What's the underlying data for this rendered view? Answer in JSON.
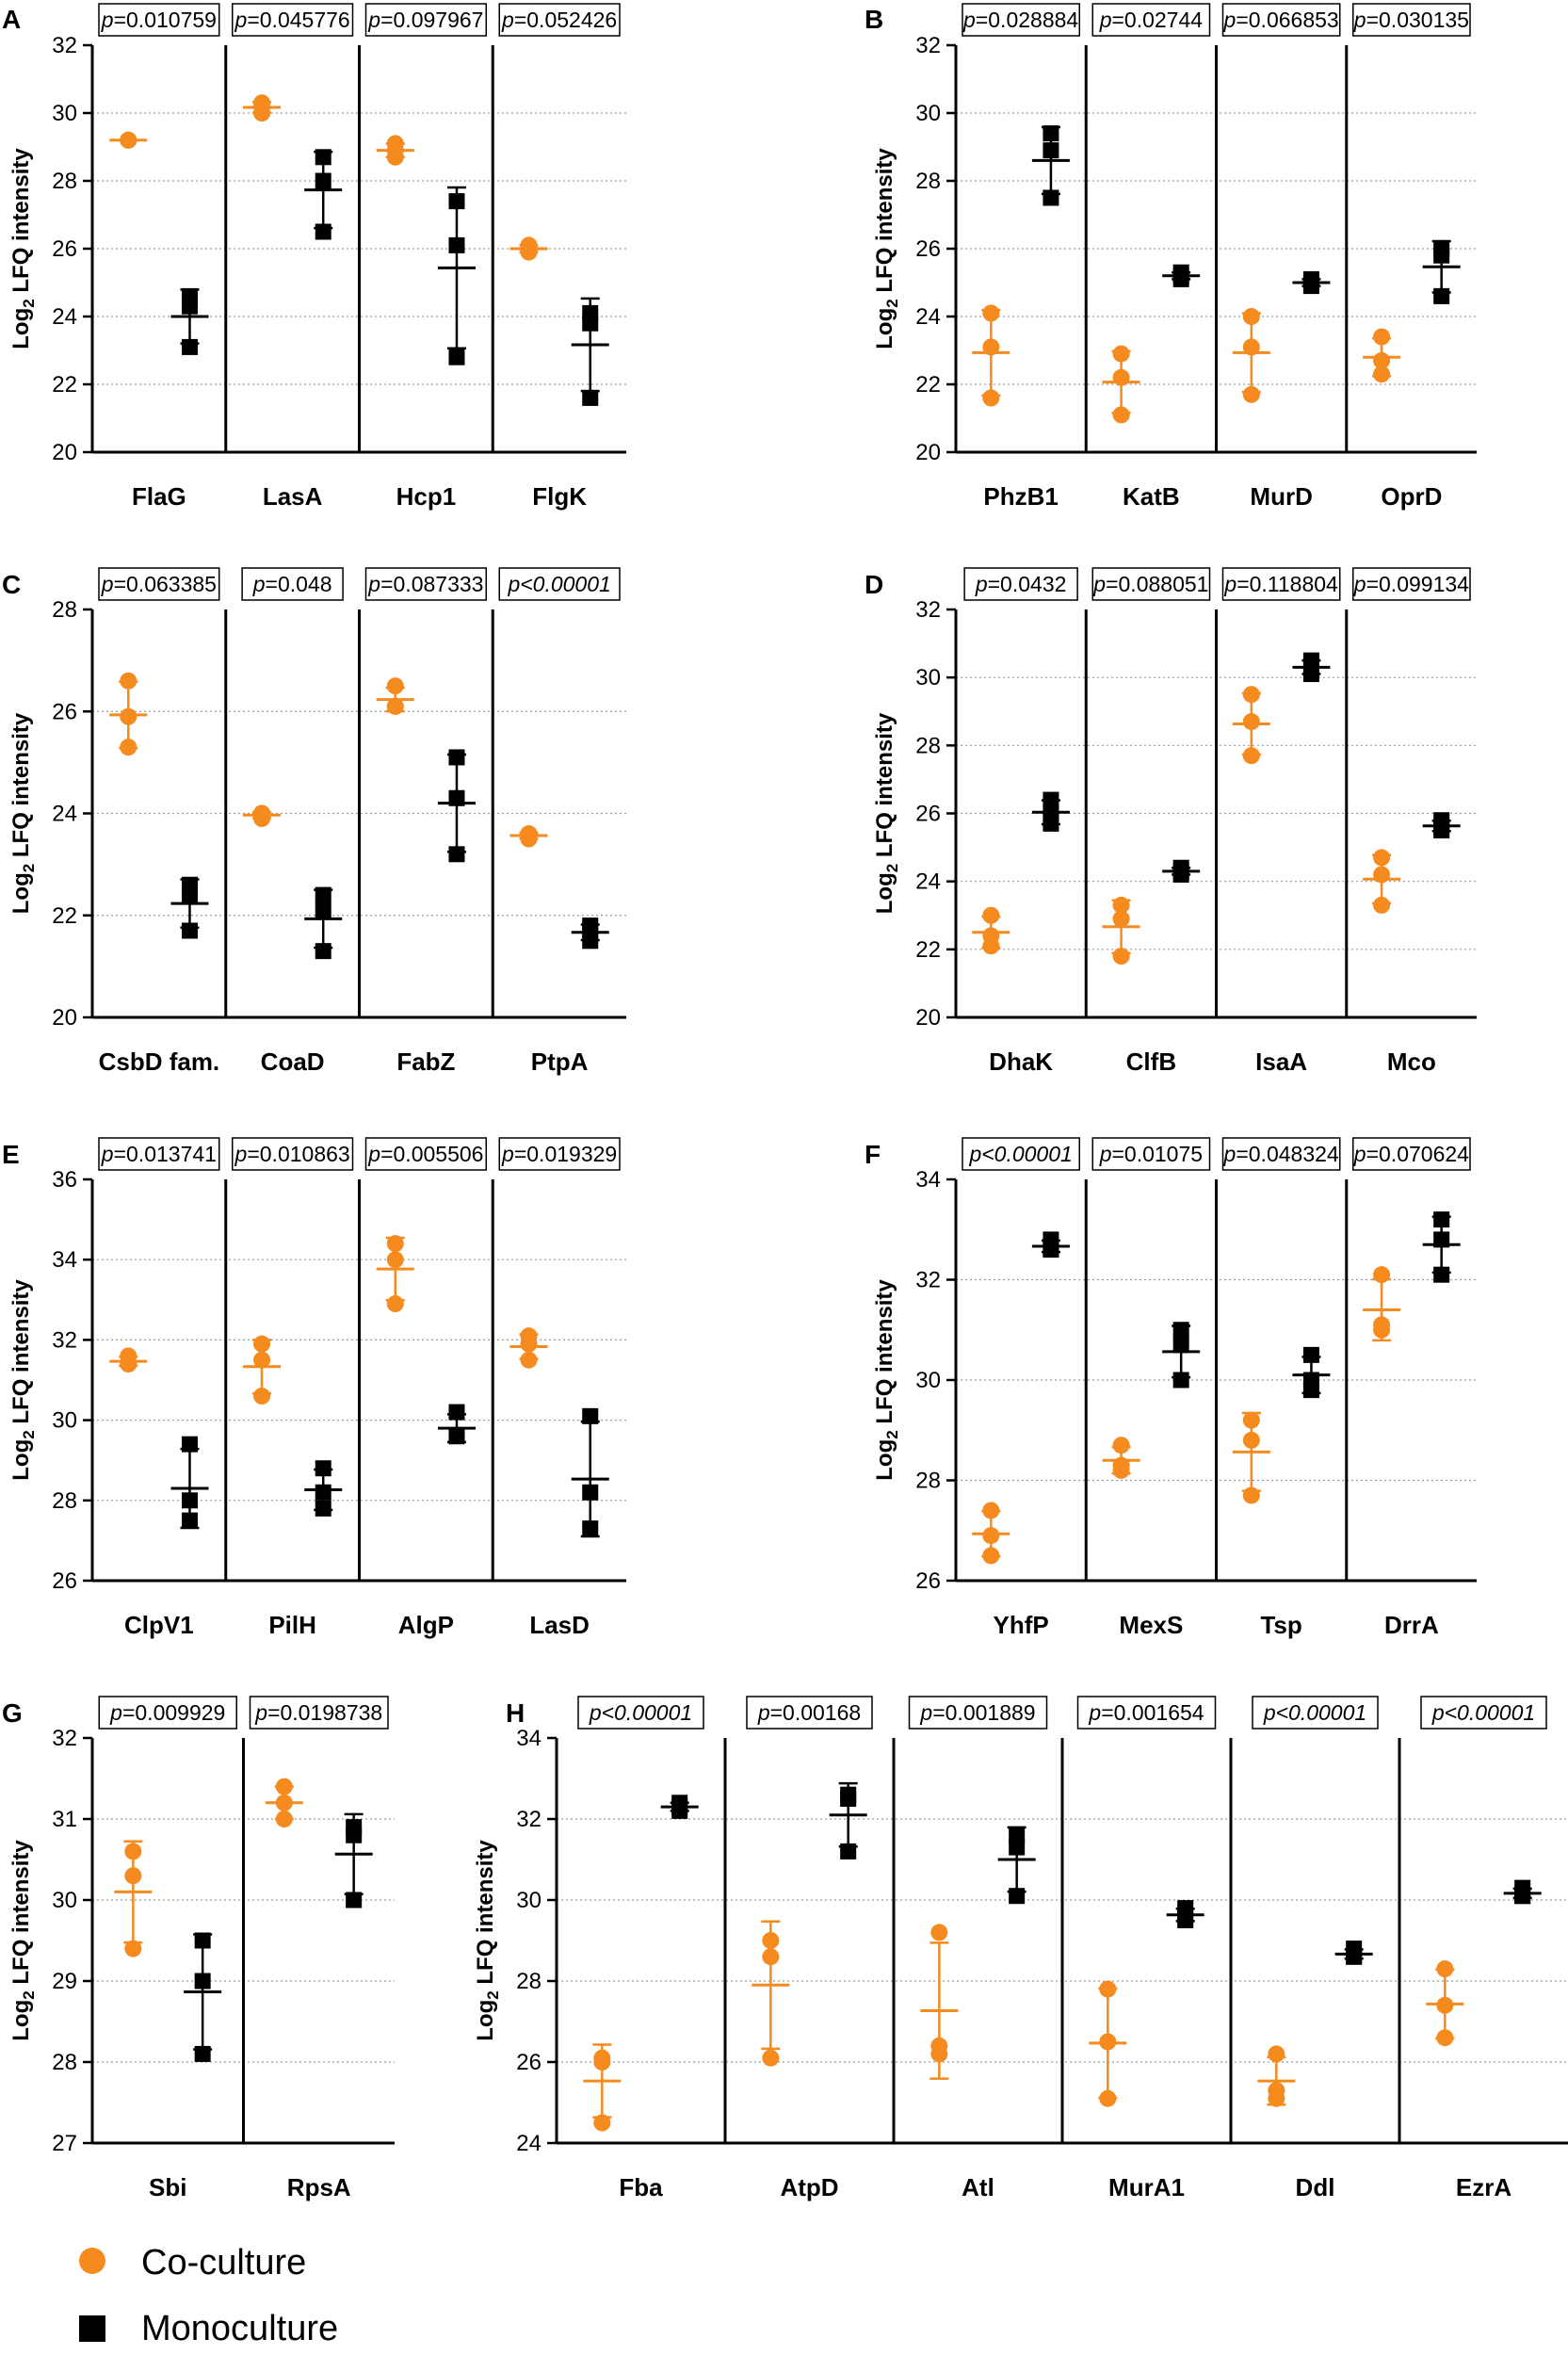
{
  "colors": {
    "coculture": "#F58A1F",
    "monoculture": "#000000"
  },
  "legend": [
    {
      "label": "Co-culture",
      "color": "#F58A1F",
      "marker": "circle"
    },
    {
      "label": "Monoculture",
      "color": "#000000",
      "marker": "square"
    }
  ],
  "chart_data": [
    {
      "panel": "A",
      "type": "scatter",
      "ylabel": "Log2 LFQ intensity",
      "ylim": [
        20,
        32
      ],
      "yticks": [
        20,
        22,
        24,
        26,
        28,
        30,
        32
      ],
      "categories": [
        "FlaG",
        "LasA",
        "Hcp1",
        "FlgK"
      ],
      "pvalues": [
        "p=0.010759",
        "p=0.045776",
        "p=0.097967",
        "p=0.052426"
      ],
      "series": [
        {
          "name": "Co-culture",
          "points": [
            [
              29.2,
              29.2,
              29.2
            ],
            [
              30.3,
              30.0,
              30.2
            ],
            [
              29.1,
              28.7,
              28.9
            ],
            [
              26.1,
              25.9,
              26.0
            ]
          ]
        },
        {
          "name": "Monoculture",
          "points": [
            [
              24.6,
              24.3,
              23.1
            ],
            [
              28.7,
              28.0,
              26.5
            ],
            [
              27.4,
              26.1,
              22.8
            ],
            [
              24.1,
              21.6,
              23.8
            ]
          ]
        }
      ]
    },
    {
      "panel": "B",
      "type": "scatter",
      "ylabel": "Log2 LFQ intensity",
      "ylim": [
        20,
        32
      ],
      "yticks": [
        20,
        22,
        24,
        26,
        28,
        30,
        32
      ],
      "categories": [
        "PhzB1",
        "KatB",
        "MurD",
        "OprD"
      ],
      "pvalues": [
        "p=0.028884",
        "p=0.02744",
        "p=0.066853",
        "p=0.030135"
      ],
      "series": [
        {
          "name": "Co-culture",
          "points": [
            [
              24.1,
              23.1,
              21.6
            ],
            [
              22.9,
              22.2,
              21.1
            ],
            [
              24.0,
              23.1,
              21.7
            ],
            [
              23.4,
              22.7,
              22.3
            ]
          ]
        },
        {
          "name": "Monoculture",
          "points": [
            [
              29.4,
              28.9,
              27.5
            ],
            [
              25.2,
              25.3,
              25.1
            ],
            [
              25.0,
              24.9,
              25.1
            ],
            [
              26.0,
              25.8,
              24.6
            ]
          ]
        }
      ]
    },
    {
      "panel": "C",
      "type": "scatter",
      "ylabel": "Log2 LFQ intensity",
      "ylim": [
        20,
        28
      ],
      "yticks": [
        20,
        22,
        24,
        26,
        28
      ],
      "categories": [
        "CsbD fam.",
        "CoaD",
        "FabZ",
        "PtpA"
      ],
      "pvalues": [
        "p=0.063385",
        "p=0.048",
        "p=0.087333",
        "p<0.00001"
      ],
      "italic": [
        false,
        false,
        false,
        true
      ],
      "series": [
        {
          "name": "Co-culture",
          "points": [
            [
              26.6,
              25.9,
              25.3
            ],
            [
              24.0,
              23.9,
              24.0
            ],
            [
              26.5,
              26.1,
              26.1
            ],
            [
              23.6,
              23.5,
              23.6
            ]
          ]
        },
        {
          "name": "Monoculture",
          "points": [
            [
              22.6,
              22.4,
              21.7
            ],
            [
              22.4,
              22.1,
              21.3
            ],
            [
              25.1,
              24.3,
              23.2
            ],
            [
              21.8,
              21.5,
              21.7
            ]
          ]
        }
      ]
    },
    {
      "panel": "D",
      "type": "scatter",
      "ylabel": "Log2 LFQ intensity",
      "ylim": [
        20,
        32
      ],
      "yticks": [
        20,
        22,
        24,
        26,
        28,
        30,
        32
      ],
      "categories": [
        "DhaK",
        "ClfB",
        "IsaA",
        "Mco"
      ],
      "pvalues": [
        "p=0.0432",
        "p=0.088051",
        "p=0.118804",
        "p=0.099134"
      ],
      "series": [
        {
          "name": "Co-culture",
          "points": [
            [
              23.0,
              22.4,
              22.1
            ],
            [
              23.3,
              22.9,
              21.8
            ],
            [
              29.5,
              28.7,
              27.7
            ],
            [
              24.7,
              24.2,
              23.3
            ]
          ]
        },
        {
          "name": "Monoculture",
          "points": [
            [
              26.4,
              26.0,
              25.7
            ],
            [
              24.4,
              24.3,
              24.2
            ],
            [
              30.5,
              30.3,
              30.1
            ],
            [
              25.8,
              25.6,
              25.5
            ]
          ]
        }
      ]
    },
    {
      "panel": "E",
      "type": "scatter",
      "ylabel": "Log2 LFQ intensity",
      "ylim": [
        26,
        36
      ],
      "yticks": [
        26,
        28,
        30,
        32,
        34,
        36
      ],
      "categories": [
        "ClpV1",
        "PilH",
        "AlgP",
        "LasD"
      ],
      "pvalues": [
        "p=0.013741",
        "p=0.010863",
        "p=0.005506",
        "p=0.019329"
      ],
      "series": [
        {
          "name": "Co-culture",
          "points": [
            [
              31.6,
              31.4,
              31.4
            ],
            [
              31.9,
              31.5,
              30.6
            ],
            [
              34.4,
              34.0,
              32.9
            ],
            [
              32.1,
              31.9,
              31.5
            ]
          ]
        },
        {
          "name": "Monoculture",
          "points": [
            [
              29.4,
              28.0,
              27.5
            ],
            [
              28.8,
              28.2,
              27.8
            ],
            [
              30.2,
              29.6,
              29.6
            ],
            [
              30.1,
              28.2,
              27.3
            ]
          ]
        }
      ]
    },
    {
      "panel": "F",
      "type": "scatter",
      "ylabel": "Log2 LFQ intensity",
      "ylim": [
        26,
        34
      ],
      "yticks": [
        26,
        28,
        30,
        32,
        34
      ],
      "categories": [
        "YhfP",
        "MexS",
        "Tsp",
        "DrrA"
      ],
      "pvalues": [
        "p<0.00001",
        "p=0.01075",
        "p=0.048324",
        "p=0.070624"
      ],
      "italic": [
        true,
        false,
        false,
        false
      ],
      "series": [
        {
          "name": "Co-culture",
          "points": [
            [
              27.4,
              26.9,
              26.5
            ],
            [
              28.7,
              28.3,
              28.2
            ],
            [
              29.2,
              28.8,
              27.7
            ],
            [
              32.1,
              31.0,
              31.1
            ]
          ]
        },
        {
          "name": "Monoculture",
          "points": [
            [
              32.8,
              32.6,
              32.6
            ],
            [
              31.0,
              30.7,
              30.0
            ],
            [
              30.5,
              30.0,
              29.8
            ],
            [
              33.2,
              32.8,
              32.1
            ]
          ]
        }
      ]
    },
    {
      "panel": "G",
      "type": "scatter",
      "ylabel": "Log2 LFQ intensity",
      "ylim": [
        27,
        32
      ],
      "yticks": [
        27,
        28,
        29,
        30,
        31,
        32
      ],
      "categories": [
        "Sbi",
        "RpsA"
      ],
      "pvalues": [
        "p=0.009929",
        "p=0.0198738"
      ],
      "series": [
        {
          "name": "Co-culture",
          "points": [
            [
              30.6,
              30.3,
              29.4
            ],
            [
              31.4,
              31.2,
              31.0
            ]
          ]
        },
        {
          "name": "Monoculture",
          "points": [
            [
              29.5,
              29.0,
              28.1
            ],
            [
              30.8,
              30.9,
              30.0
            ]
          ]
        }
      ]
    },
    {
      "panel": "H",
      "type": "scatter",
      "ylabel": "Log2 LFQ intensity",
      "ylim": [
        24,
        34
      ],
      "yticks": [
        24,
        26,
        28,
        30,
        32,
        34
      ],
      "categories": [
        "Fba",
        "AtpD",
        "Atl",
        "MurA1",
        "Ddl",
        "EzrA"
      ],
      "pvalues": [
        "p<0.00001",
        "p=0.00168",
        "p=0.001889",
        "p=0.001654",
        "p<0.00001",
        "p<0.00001"
      ],
      "italic": [
        true,
        false,
        false,
        false,
        true,
        true
      ],
      "series": [
        {
          "name": "Co-culture",
          "points": [
            [
              26.1,
              26.0,
              24.5
            ],
            [
              29.0,
              28.6,
              26.1
            ],
            [
              29.2,
              26.4,
              26.2
            ],
            [
              27.8,
              26.5,
              25.1
            ],
            [
              26.2,
              25.3,
              25.1
            ],
            [
              28.3,
              27.4,
              26.6
            ]
          ]
        },
        {
          "name": "Monoculture",
          "points": [
            [
              32.4,
              32.3,
              32.2
            ],
            [
              32.6,
              32.5,
              31.2
            ],
            [
              31.6,
              31.3,
              30.1
            ],
            [
              29.8,
              29.6,
              29.5
            ],
            [
              28.8,
              28.6,
              28.6
            ],
            [
              30.3,
              30.1,
              30.1
            ]
          ]
        }
      ]
    }
  ]
}
